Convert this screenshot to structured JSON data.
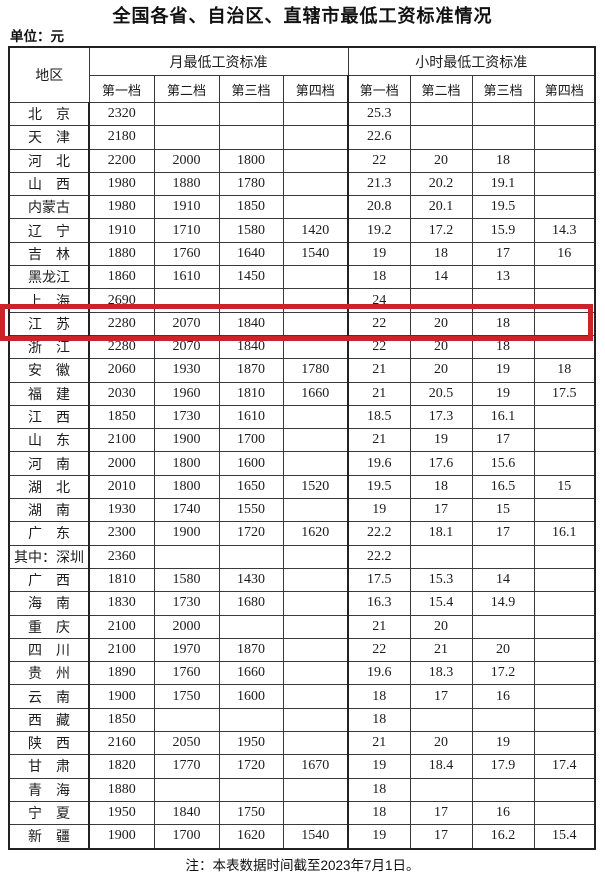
{
  "page": {
    "title": "全国各省、自治区、直辖市最低工资标准情况",
    "unit_label": "单位：元",
    "note": "注：本表数据时间截至2023年7月1日。"
  },
  "table": {
    "region_header": "地区",
    "monthly_header": "月最低工资标准",
    "hourly_header": "小时最低工资标准",
    "tier_headers": [
      "第一档",
      "第二档",
      "第三档",
      "第四档"
    ],
    "highlight_color": "#c9242a",
    "highlighted_region": "江　苏",
    "rows": [
      {
        "region": "北　京",
        "cells": [
          "2320",
          "",
          "",
          "",
          "25.3",
          "",
          "",
          ""
        ]
      },
      {
        "region": "天　津",
        "cells": [
          "2180",
          "",
          "",
          "",
          "22.6",
          "",
          "",
          ""
        ]
      },
      {
        "region": "河　北",
        "cells": [
          "2200",
          "2000",
          "1800",
          "",
          "22",
          "20",
          "18",
          ""
        ]
      },
      {
        "region": "山　西",
        "cells": [
          "1980",
          "1880",
          "1780",
          "",
          "21.3",
          "20.2",
          "19.1",
          ""
        ]
      },
      {
        "region": "内蒙古",
        "cells": [
          "1980",
          "1910",
          "1850",
          "",
          "20.8",
          "20.1",
          "19.5",
          ""
        ]
      },
      {
        "region": "辽　宁",
        "cells": [
          "1910",
          "1710",
          "1580",
          "1420",
          "19.2",
          "17.2",
          "15.9",
          "14.3"
        ]
      },
      {
        "region": "吉　林",
        "cells": [
          "1880",
          "1760",
          "1640",
          "1540",
          "19",
          "18",
          "17",
          "16"
        ]
      },
      {
        "region": "黑龙江",
        "cells": [
          "1860",
          "1610",
          "1450",
          "",
          "18",
          "14",
          "13",
          ""
        ]
      },
      {
        "region": "上　海",
        "cells": [
          "2690",
          "",
          "",
          "",
          "24",
          "",
          "",
          ""
        ]
      },
      {
        "region": "江　苏",
        "cells": [
          "2280",
          "2070",
          "1840",
          "",
          "22",
          "20",
          "18",
          ""
        ]
      },
      {
        "region": "浙　江",
        "cells": [
          "2280",
          "2070",
          "1840",
          "",
          "22",
          "20",
          "18",
          ""
        ]
      },
      {
        "region": "安　徽",
        "cells": [
          "2060",
          "1930",
          "1870",
          "1780",
          "21",
          "20",
          "19",
          "18"
        ]
      },
      {
        "region": "福　建",
        "cells": [
          "2030",
          "1960",
          "1810",
          "1660",
          "21",
          "20.5",
          "19",
          "17.5"
        ]
      },
      {
        "region": "江　西",
        "cells": [
          "1850",
          "1730",
          "1610",
          "",
          "18.5",
          "17.3",
          "16.1",
          ""
        ]
      },
      {
        "region": "山　东",
        "cells": [
          "2100",
          "1900",
          "1700",
          "",
          "21",
          "19",
          "17",
          ""
        ]
      },
      {
        "region": "河　南",
        "cells": [
          "2000",
          "1800",
          "1600",
          "",
          "19.6",
          "17.6",
          "15.6",
          ""
        ]
      },
      {
        "region": "湖　北",
        "cells": [
          "2010",
          "1800",
          "1650",
          "1520",
          "19.5",
          "18",
          "16.5",
          "15"
        ]
      },
      {
        "region": "湖　南",
        "cells": [
          "1930",
          "1740",
          "1550",
          "",
          "19",
          "17",
          "15",
          ""
        ]
      },
      {
        "region": "广　东",
        "cells": [
          "2300",
          "1900",
          "1720",
          "1620",
          "22.2",
          "18.1",
          "17",
          "16.1"
        ]
      },
      {
        "region": "其中：深圳",
        "cells": [
          "2360",
          "",
          "",
          "",
          "22.2",
          "",
          "",
          ""
        ]
      },
      {
        "region": "广　西",
        "cells": [
          "1810",
          "1580",
          "1430",
          "",
          "17.5",
          "15.3",
          "14",
          ""
        ]
      },
      {
        "region": "海　南",
        "cells": [
          "1830",
          "1730",
          "1680",
          "",
          "16.3",
          "15.4",
          "14.9",
          ""
        ]
      },
      {
        "region": "重　庆",
        "cells": [
          "2100",
          "2000",
          "",
          "",
          "21",
          "20",
          "",
          ""
        ]
      },
      {
        "region": "四　川",
        "cells": [
          "2100",
          "1970",
          "1870",
          "",
          "22",
          "21",
          "20",
          ""
        ]
      },
      {
        "region": "贵　州",
        "cells": [
          "1890",
          "1760",
          "1660",
          "",
          "19.6",
          "18.3",
          "17.2",
          ""
        ]
      },
      {
        "region": "云　南",
        "cells": [
          "1900",
          "1750",
          "1600",
          "",
          "18",
          "17",
          "16",
          ""
        ]
      },
      {
        "region": "西　藏",
        "cells": [
          "1850",
          "",
          "",
          "",
          "18",
          "",
          "",
          ""
        ]
      },
      {
        "region": "陕　西",
        "cells": [
          "2160",
          "2050",
          "1950",
          "",
          "21",
          "20",
          "19",
          ""
        ]
      },
      {
        "region": "甘　肃",
        "cells": [
          "1820",
          "1770",
          "1720",
          "1670",
          "19",
          "18.4",
          "17.9",
          "17.4"
        ]
      },
      {
        "region": "青　海",
        "cells": [
          "1880",
          "",
          "",
          "",
          "18",
          "",
          "",
          ""
        ]
      },
      {
        "region": "宁　夏",
        "cells": [
          "1950",
          "1840",
          "1750",
          "",
          "18",
          "17",
          "16",
          ""
        ]
      },
      {
        "region": "新　疆",
        "cells": [
          "1900",
          "1700",
          "1620",
          "1540",
          "19",
          "17",
          "16.2",
          "15.4"
        ]
      }
    ]
  }
}
